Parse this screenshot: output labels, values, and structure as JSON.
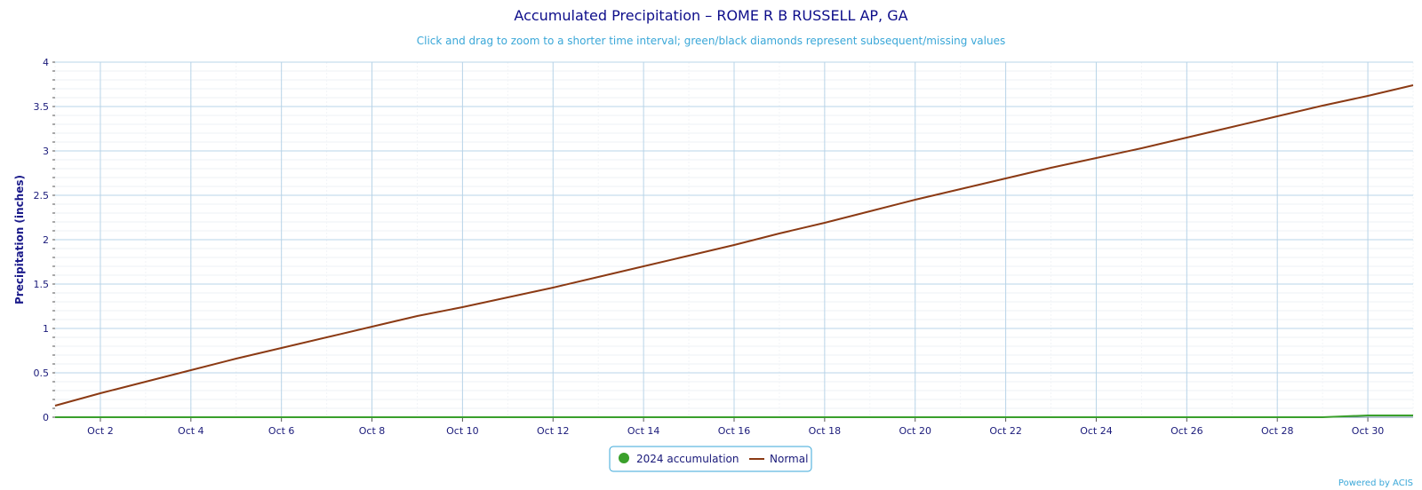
{
  "chart_data": {
    "type": "line",
    "title": "Accumulated Precipitation – ROME R B RUSSELL AP, GA",
    "subtitle": "Click and drag to zoom to a shorter time interval; green/black diamonds represent subsequent/missing values",
    "ylabel": "Precipitation (inches)",
    "xlabel": "",
    "ylim": [
      0,
      4
    ],
    "xlim": [
      1,
      31
    ],
    "y_ticks": [
      0,
      0.5,
      1,
      1.5,
      2,
      2.5,
      3,
      3.5,
      4
    ],
    "y_tick_labels": [
      "0",
      "0.5",
      "1",
      "1.5",
      "2",
      "2.5",
      "3",
      "3.5",
      "4"
    ],
    "x_ticks": [
      2,
      4,
      6,
      8,
      10,
      12,
      14,
      16,
      18,
      20,
      22,
      24,
      26,
      28,
      30
    ],
    "x_tick_labels": [
      "Oct 2",
      "Oct 4",
      "Oct 6",
      "Oct 8",
      "Oct 10",
      "Oct 12",
      "Oct 14",
      "Oct 16",
      "Oct 18",
      "Oct 20",
      "Oct 22",
      "Oct 24",
      "Oct 26",
      "Oct 28",
      "Oct 30"
    ],
    "grid": true,
    "legend": "bottom-center",
    "series": [
      {
        "name": "2024 accumulation",
        "color": "#3aa02b",
        "x": [
          1,
          2,
          3,
          4,
          5,
          6,
          7,
          8,
          9,
          10,
          11,
          12,
          13,
          14,
          15,
          16,
          17,
          18,
          19,
          20,
          21,
          22,
          23,
          24,
          25,
          26,
          27,
          28,
          29,
          30,
          31
        ],
        "values": [
          0,
          0,
          0,
          0,
          0,
          0,
          0,
          0,
          0,
          0,
          0,
          0,
          0,
          0,
          0,
          0,
          0,
          0,
          0,
          0,
          0,
          0,
          0,
          0,
          0,
          0,
          0,
          0,
          0,
          0.02,
          0.02
        ]
      },
      {
        "name": "Normal",
        "color": "#8b3a14",
        "x": [
          1,
          2,
          3,
          4,
          5,
          6,
          7,
          8,
          9,
          10,
          11,
          12,
          13,
          14,
          15,
          16,
          17,
          18,
          19,
          20,
          21,
          22,
          23,
          24,
          25,
          26,
          27,
          28,
          29,
          30,
          31
        ],
        "values": [
          0.13,
          0.27,
          0.4,
          0.53,
          0.66,
          0.78,
          0.9,
          1.02,
          1.14,
          1.24,
          1.35,
          1.46,
          1.58,
          1.7,
          1.82,
          1.94,
          2.07,
          2.19,
          2.32,
          2.45,
          2.57,
          2.69,
          2.81,
          2.92,
          3.03,
          3.15,
          3.27,
          3.39,
          3.51,
          3.62,
          3.74
        ]
      }
    ]
  },
  "credit": "Powered by ACIS"
}
